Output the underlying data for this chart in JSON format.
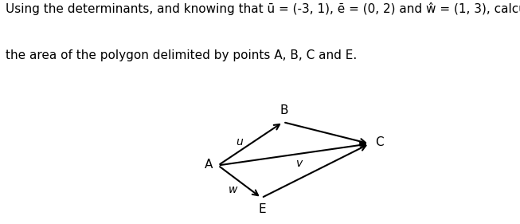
{
  "title_line1": "Using the determinants, and knowing that ū = (-3, 1), ẽ = (0, 2) and ŵ = (1, 3), calculate",
  "title_line2": "the area of the polygon delimited by points A, B, C and E.",
  "text_color": "#000000",
  "arrow_color": "#000000",
  "bg_color": "#ffffff",
  "diagram_bg": "#ede8df",
  "A": [
    0,
    0
  ],
  "B": [
    3,
    2
  ],
  "C": [
    7,
    1
  ],
  "E": [
    2,
    -1.5
  ],
  "label_A": "A",
  "label_B": "B",
  "label_C": "C",
  "label_E": "E",
  "label_u": "u",
  "label_v": "v",
  "label_w": "w",
  "title_fontsize": 11,
  "label_fontsize": 11,
  "vector_fontsize": 10
}
